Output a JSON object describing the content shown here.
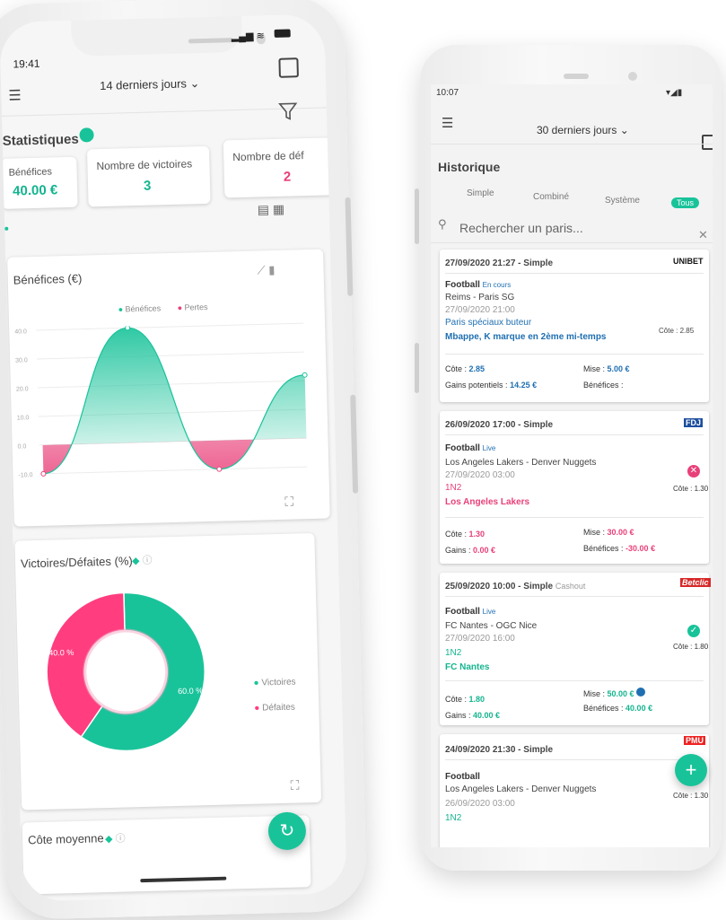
{
  "left_phone": {
    "status": {
      "time": "19:41"
    },
    "header": {
      "period": "14 derniers jours ⌄"
    },
    "stats": {
      "title": "Statistiques",
      "cards": [
        {
          "label": "Bénéfices",
          "value": "40.00 €"
        },
        {
          "label": "Nombre de victoires",
          "value": "3"
        },
        {
          "label": "Nombre de déf",
          "value": "2"
        }
      ]
    },
    "benefits_chart": {
      "title": "Bénéfices (€)",
      "legend": [
        "Bénéfices",
        "Pertes"
      ],
      "colors": {
        "positive": "#19c39a",
        "negative": "#e9407a"
      }
    },
    "wins_chart": {
      "title": "Victoires/Défaites (%)",
      "legend": [
        "Victoires",
        "Défaites"
      ],
      "colors": {
        "wins": "#19c39a",
        "losses": "#ff3d7f"
      }
    },
    "avg_odds": {
      "title": "Côte moyenne"
    }
  },
  "chart_data": [
    {
      "type": "area",
      "title": "Bénéfices (€)",
      "series": [
        {
          "name": "Bénéfices",
          "x": [
            0,
            1,
            2,
            3
          ],
          "values": [
            -10,
            40,
            -10,
            22
          ]
        }
      ],
      "ylabels": [
        "40.0",
        "30.0",
        "20.0",
        "10.0",
        "0.0",
        "-10.0"
      ],
      "ylim": [
        -10,
        40
      ],
      "legend": [
        "Bénéfices",
        "Pertes"
      ]
    },
    {
      "type": "pie",
      "title": "Victoires/Défaites (%)",
      "categories": [
        "Victoires",
        "Défaites"
      ],
      "values": [
        60,
        40
      ],
      "labels": [
        "60.0 %",
        "40.0 %"
      ]
    }
  ],
  "right_phone": {
    "status": {
      "time": "10:07"
    },
    "header": {
      "period": "30 derniers jours ⌄"
    },
    "history": {
      "title": "Historique",
      "tabs": [
        "Simple",
        "Combiné",
        "Système",
        "Tous"
      ],
      "search_placeholder": "Rechercher un paris..."
    },
    "bets": [
      {
        "header": "27/09/2020 21:27 - Simple",
        "bookmaker": "UNIBET",
        "sport": "Football",
        "state": "En cours",
        "match": "Reims - Paris SG",
        "date": "27/09/2020 21:00",
        "market": "Paris spéciaux buteur",
        "selection": "Mbappe, K marque en 2ème mi-temps",
        "odds_label": "Côte : 2.85",
        "cote": "2.85",
        "gains_label": "Gains potentiels :",
        "gains": "14.25 €",
        "stake": "5.00 €",
        "benefit": ""
      },
      {
        "header": "26/09/2020 17:00 - Simple",
        "bookmaker": "FDJ",
        "sport": "Football",
        "state": "Live",
        "match": "Los Angeles Lakers - Denver Nuggets",
        "date": "27/09/2020 03:00",
        "market": "1N2",
        "selection": "Los Angeles Lakers",
        "odds_label": "Côte : 1.30",
        "cote": "1.30",
        "gains_label": "Gains :",
        "gains": "0.00 €",
        "stake": "30.00 €",
        "benefit": "-30.00 €"
      },
      {
        "header": "25/09/2020 10:00 - Simple",
        "extra": "Cashout",
        "bookmaker": "Betclic",
        "sport": "Football",
        "state": "Live",
        "match": "FC Nantes - OGC Nice",
        "date": "27/09/2020 16:00",
        "market": "1N2",
        "selection": "FC Nantes",
        "odds_label": "Côte : 1.80",
        "cote": "1.80",
        "gains_label": "Gains :",
        "gains": "40.00 €",
        "stake": "50.00 €",
        "benefit": "40.00 €"
      },
      {
        "header": "24/09/2020 21:30 - Simple",
        "bookmaker": "PMU",
        "sport": "Football",
        "match": "Los Angeles Lakers - Denver Nuggets",
        "date": "26/09/2020 03:00",
        "market": "1N2",
        "odds_label": "Côte : 1.30"
      }
    ],
    "labels": {
      "cote": "Côte :",
      "mise": "Mise :",
      "benefices": "Bénéfices :"
    },
    "fab": "+"
  }
}
